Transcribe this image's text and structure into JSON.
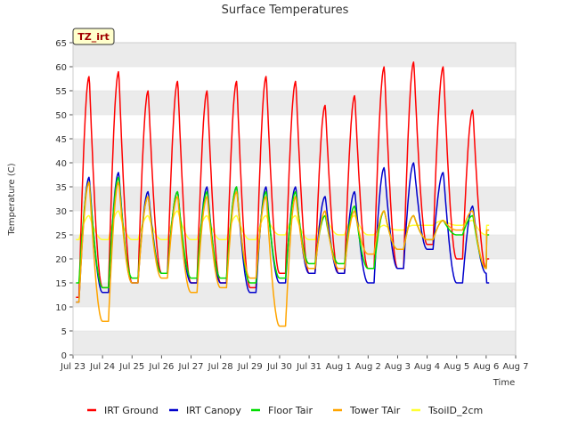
{
  "chart_data": {
    "type": "line",
    "title": "Surface Temperatures",
    "xlabel": "Time",
    "ylabel": "Temperature (C)",
    "badge": "TZ_irt",
    "x_ticks": [
      "Jul 23",
      "Jul 24",
      "Jul 25",
      "Jul 26",
      "Jul 27",
      "Jul 28",
      "Jul 29",
      "Jul 30",
      "Jul 31",
      "Aug 1",
      "Aug 2",
      "Aug 3",
      "Aug 4",
      "Aug 5",
      "Aug 6",
      "Aug 7"
    ],
    "xlim": [
      0,
      15
    ],
    "ylim": [
      0,
      65
    ],
    "y_ticks": [
      "0",
      "5",
      "10",
      "15",
      "20",
      "25",
      "30",
      "35",
      "40",
      "45",
      "50",
      "55",
      "60",
      "65"
    ],
    "banded_background": true,
    "legend_position": "bottom",
    "series": [
      {
        "name": "IRT Ground",
        "color": "#ff0000",
        "peaks": [
          58,
          59,
          55,
          57,
          55,
          57,
          58,
          57,
          52,
          54,
          60,
          61,
          60,
          51
        ],
        "mins": [
          12,
          14,
          15,
          17,
          15,
          15,
          14,
          17,
          17,
          17,
          18,
          18,
          23,
          20,
          18
        ]
      },
      {
        "name": "IRT Canopy",
        "color": "#0000cc",
        "peaks": [
          37,
          38,
          34,
          34,
          35,
          35,
          35,
          35,
          33,
          34,
          39,
          40,
          38,
          31
        ],
        "mins": [
          11,
          13,
          15,
          17,
          15,
          15,
          13,
          15,
          17,
          17,
          15,
          18,
          22,
          15,
          17
        ]
      },
      {
        "name": "Floor Tair",
        "color": "#00dd00",
        "peaks": [
          36,
          37,
          33,
          34,
          34,
          35,
          34,
          34,
          29,
          31,
          30,
          29,
          28,
          29
        ],
        "mins": [
          15,
          14,
          16,
          17,
          16,
          16,
          15,
          16,
          19,
          19,
          18,
          22,
          24,
          25,
          18
        ]
      },
      {
        "name": "Tower TAir",
        "color": "#ffa500",
        "peaks": [
          36,
          36,
          33,
          33,
          33,
          34,
          33,
          33,
          30,
          30,
          30,
          29,
          28,
          30
        ],
        "mins": [
          11,
          7,
          15,
          16,
          13,
          14,
          16,
          6,
          18,
          18,
          21,
          22,
          24,
          26,
          18
        ]
      },
      {
        "name": "TsoilD_2cm",
        "color": "#ffff33",
        "peaks": [
          29,
          30,
          29,
          30,
          29,
          29,
          29,
          29,
          29,
          29,
          27,
          27,
          28,
          28
        ],
        "mins": [
          24,
          24,
          24,
          24,
          24,
          24,
          24,
          25,
          24,
          25,
          25,
          26,
          27,
          27,
          25
        ]
      }
    ]
  }
}
